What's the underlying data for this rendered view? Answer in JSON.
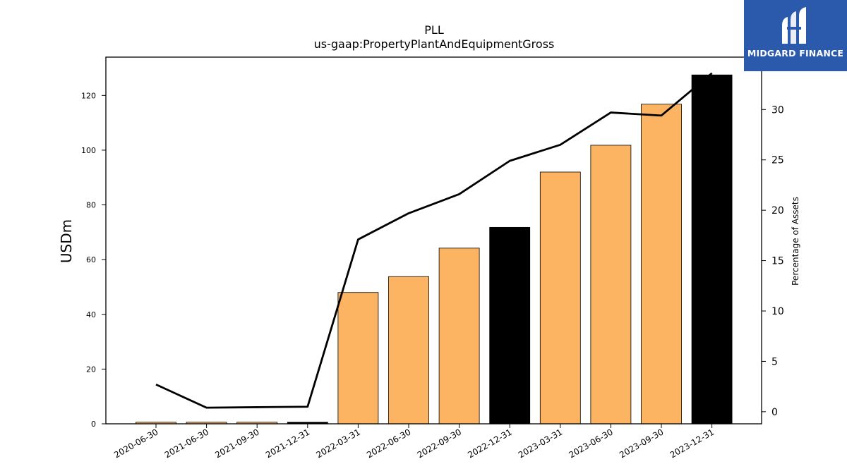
{
  "chart_data": {
    "type": "bar",
    "title": "PLL",
    "subtitle": "us-gaap:PropertyPlantAndEquipmentGross",
    "ylabel": "USDm",
    "y2label": "Percentage of Assets",
    "ylim": [
      0,
      134
    ],
    "y2lim": [
      -1.2,
      35.2
    ],
    "yticks": [
      0,
      20,
      40,
      60,
      80,
      100,
      120
    ],
    "y2ticks": [
      0,
      5,
      10,
      15,
      20,
      25,
      30
    ],
    "categories": [
      "2020-06-30",
      "2021-06-30",
      "2021-09-30",
      "2021-12-31",
      "2022-03-31",
      "2022-06-30",
      "2022-09-30",
      "2022-12-31",
      "2023-03-31",
      "2023-06-30",
      "2023-09-30",
      "2023-12-31"
    ],
    "series": [
      {
        "type": "bar",
        "values": [
          0.6,
          0.6,
          0.6,
          0.6,
          48.0,
          53.8,
          64.2,
          71.8,
          92.0,
          101.8,
          116.8,
          127.5
        ]
      },
      {
        "type": "line",
        "axis": "right",
        "values": [
          2.7,
          0.4,
          0.45,
          0.5,
          17.1,
          19.7,
          21.6,
          24.9,
          26.5,
          29.7,
          29.4,
          33.6
        ]
      }
    ],
    "bar_colors": [
      "#fcb463",
      "#fcb463",
      "#fcb463",
      "#000000",
      "#fcb463",
      "#fcb463",
      "#fcb463",
      "#000000",
      "#fcb463",
      "#fcb463",
      "#fcb463",
      "#000000"
    ],
    "line_color": "#000000",
    "grid": false,
    "legend": "none"
  },
  "logo": {
    "text": "MIDGARD FINANCE",
    "color": "#2b5aad"
  }
}
